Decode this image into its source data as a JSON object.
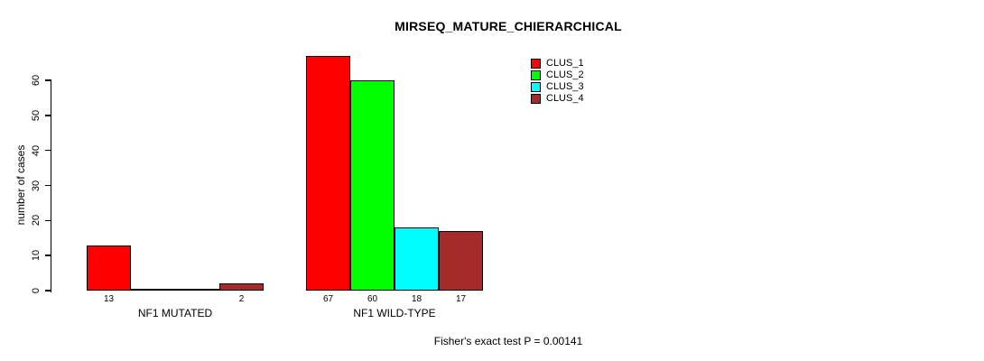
{
  "chart_data": {
    "type": "bar",
    "title": "MIRSEQ_MATURE_CHIERARCHICAL",
    "ylabel": "number of cases",
    "xlabel": "",
    "ylim": [
      0,
      60
    ],
    "yticks": [
      0,
      10,
      20,
      30,
      40,
      50,
      60
    ],
    "categories": [
      "NF1 MUTATED",
      "NF1 WILD-TYPE"
    ],
    "series": [
      {
        "name": "CLUS_1",
        "color": "#ff0000",
        "values": [
          13,
          67
        ]
      },
      {
        "name": "CLUS_2",
        "color": "#00ff00",
        "values": [
          0,
          60
        ]
      },
      {
        "name": "CLUS_3",
        "color": "#00ffff",
        "values": [
          0,
          18
        ]
      },
      {
        "name": "CLUS_4",
        "color": "#a52a2a",
        "values": [
          2,
          17
        ]
      }
    ],
    "bar_value_labels_shown_for_nonzero_only": true,
    "grid": false,
    "legend_position": "top-right",
    "annotation": "Fisher's exact test P = 0.00141"
  }
}
